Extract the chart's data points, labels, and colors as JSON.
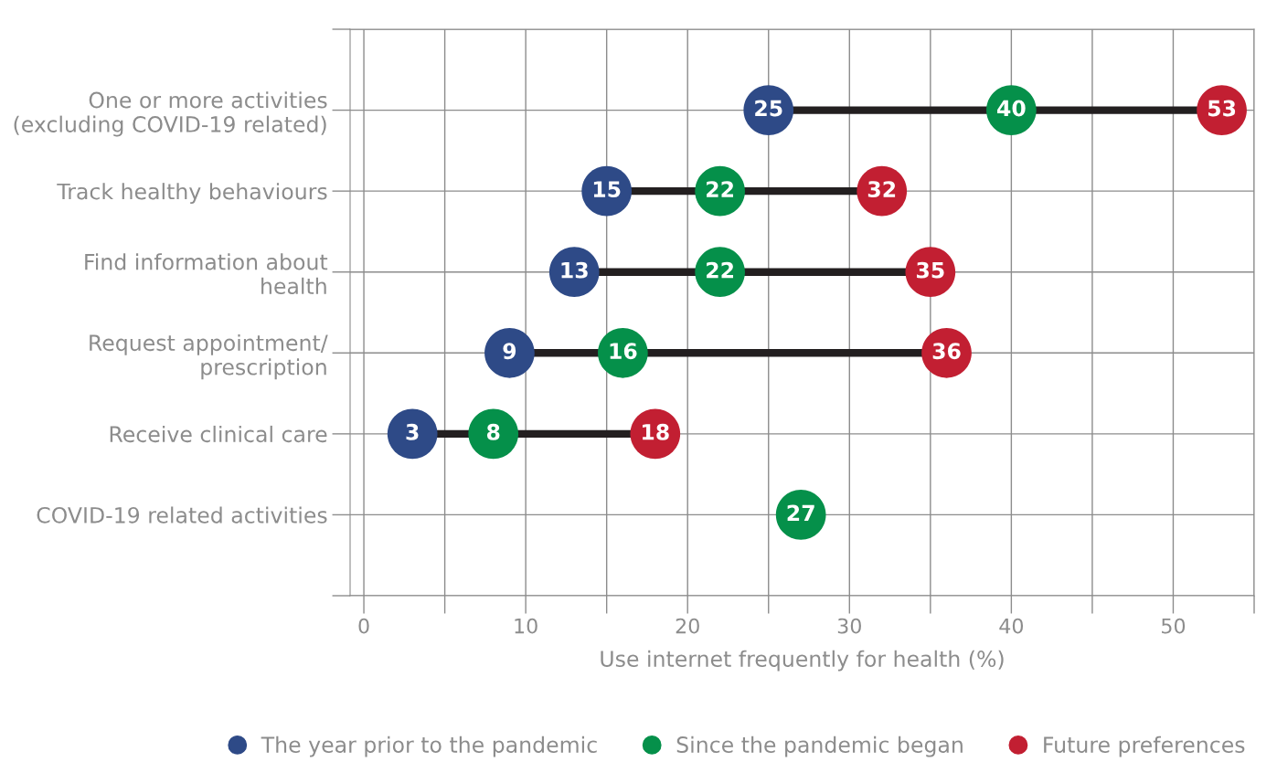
{
  "chart_data": {
    "type": "scatter",
    "orientation": "horizontal",
    "xlabel": "Use internet frequently for health (%)",
    "categories": [
      "One or more activities\n(excluding COVID-19 related)",
      "Track healthy behaviours",
      "Find information about\nhealth",
      "Request appointment/\nprescription",
      "Receive clinical care",
      "COVID-19 related activities"
    ],
    "series": [
      {
        "name": "The year prior to the pandemic",
        "color": "#2e4a87",
        "values": [
          25,
          15,
          13,
          9,
          3,
          null
        ]
      },
      {
        "name": "Since the pandemic began",
        "color": "#05904a",
        "values": [
          40,
          22,
          22,
          16,
          8,
          27
        ]
      },
      {
        "name": "Future preferences",
        "color": "#c21f32",
        "values": [
          53,
          32,
          35,
          36,
          18,
          null
        ]
      }
    ],
    "xlim": [
      -0.85,
      55
    ],
    "xticks": [
      0,
      {
        "value": 5,
        "label": null
      },
      10,
      {
        "value": 15,
        "label": null
      },
      20,
      {
        "value": 25,
        "label": null
      },
      30,
      {
        "value": 35,
        "label": null
      },
      40,
      {
        "value": 45,
        "label": null
      },
      50,
      {
        "value": 55,
        "label": null
      }
    ],
    "grid": true,
    "legend": "bottom",
    "marker": "circle",
    "data_labels": true
  }
}
